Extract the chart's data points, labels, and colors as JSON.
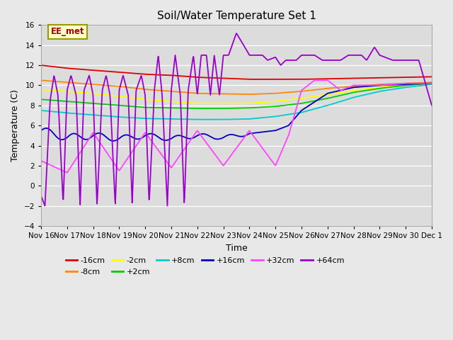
{
  "title": "Soil/Water Temperature Set 1",
  "xlabel": "Time",
  "ylabel": "Temperature (C)",
  "ylim": [
    -4,
    16
  ],
  "xlim": [
    0,
    15
  ],
  "yticks": [
    -4,
    -2,
    0,
    2,
    4,
    6,
    8,
    10,
    12,
    14,
    16
  ],
  "xtick_labels": [
    "Nov 16",
    "Nov 17",
    "Nov 18",
    "Nov 19",
    "Nov 20",
    "Nov 21",
    "Nov 22",
    "Nov 23",
    "Nov 24",
    "Nov 25",
    "Nov 26",
    "Nov 27",
    "Nov 28",
    "Nov 29",
    "Nov 30",
    "Dec 1"
  ],
  "xtick_positions": [
    0,
    1,
    2,
    3,
    4,
    5,
    6,
    7,
    8,
    9,
    10,
    11,
    12,
    13,
    14,
    15
  ],
  "bg_color": "#dcdcdc",
  "fig_color": "#e8e8e8",
  "series": [
    {
      "label": "-16cm",
      "color": "#dd0000"
    },
    {
      "label": "-8cm",
      "color": "#ff8800"
    },
    {
      "label": "-2cm",
      "color": "#ffff00"
    },
    {
      "label": "+2cm",
      "color": "#00cc00"
    },
    {
      "label": "+8cm",
      "color": "#00cccc"
    },
    {
      "label": "+16cm",
      "color": "#0000bb"
    },
    {
      "label": "+32cm",
      "color": "#ff44ff"
    },
    {
      "label": "+64cm",
      "color": "#9900cc"
    }
  ],
  "annotation_text": "EE_met",
  "annotation_color": "#aa0000",
  "annotation_bg": "#ffffcc",
  "annotation_border": "#999900"
}
